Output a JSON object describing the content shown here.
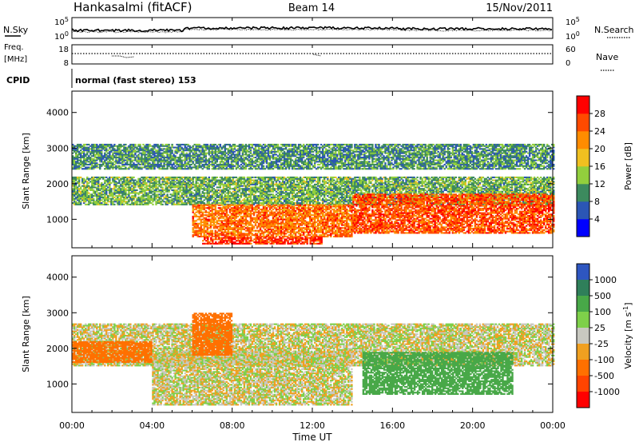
{
  "header": {
    "station": "Hankasalmi (fitACF)",
    "beam": "Beam 14",
    "date": "15/Nov/2011"
  },
  "top_panel": {
    "left_label": "N.Sky",
    "right_label": "N.Search",
    "y_ticks_left": [
      "10^5",
      "10^0"
    ],
    "y_ticks_right": [
      "10^5",
      "10^0"
    ]
  },
  "freq_panel": {
    "label_top": "Freq.",
    "label_unit": "[MHz]",
    "right_label": "Nave",
    "y_ticks_left": [
      "18",
      "8"
    ],
    "y_ticks_right": [
      "60",
      "0"
    ]
  },
  "cpid": {
    "label": "CPID",
    "text": "normal (fast stereo) 153"
  },
  "x_axis": {
    "label": "Time UT",
    "ticks": [
      "00:00",
      "04:00",
      "08:00",
      "12:00",
      "16:00",
      "20:00",
      "00:00"
    ]
  },
  "colors": {
    "power": [
      "#0000ff",
      "#2b56b5",
      "#3c8a5e",
      "#92cf3d",
      "#f0c020",
      "#ff8c00",
      "#ff4a00",
      "#ff0000"
    ],
    "velocity": [
      "#2e56c0",
      "#2f7f5a",
      "#48a848",
      "#7ed04a",
      "#c8c8c0",
      "#f0a020",
      "#ff7000",
      "#ff4400",
      "#ff0000"
    ]
  },
  "chart_data": [
    {
      "type": "heatmap",
      "title": "",
      "xlabel": "Time UT",
      "ylabel": "Slant Range [km]",
      "xlim": [
        0,
        24
      ],
      "ylim": [
        200,
        4600
      ],
      "y_ticks": [
        "1000",
        "2000",
        "3000",
        "4000"
      ],
      "colorbar": {
        "label": "Power [dB]",
        "range": [
          0,
          32
        ],
        "ticks": [
          "4",
          "8",
          "12",
          "16",
          "20",
          "24",
          "28"
        ]
      },
      "features": [
        {
          "t_start": 0,
          "t_end": 24,
          "range_start": 1400,
          "range_end": 2200,
          "value": 12
        },
        {
          "t_start": 6,
          "t_end": 14,
          "range_start": 500,
          "range_end": 1400,
          "value": 24
        },
        {
          "t_start": 6.5,
          "t_end": 12.5,
          "range_start": 300,
          "range_end": 500,
          "value": 28
        },
        {
          "t_start": 14,
          "t_end": 24,
          "range_start": 600,
          "range_end": 1700,
          "value": 26
        },
        {
          "t_start": 0,
          "t_end": 24,
          "range_start": 2400,
          "range_end": 3100,
          "value": 10
        }
      ]
    },
    {
      "type": "heatmap",
      "title": "",
      "xlabel": "Time UT",
      "ylabel": "Slant Range [km]",
      "xlim": [
        0,
        24
      ],
      "ylim": [
        200,
        4600
      ],
      "y_ticks": [
        "1000",
        "2000",
        "3000",
        "4000"
      ],
      "colorbar": {
        "label": "Velocity [m s^-1]",
        "ticks": [
          "1000",
          "500",
          "100",
          "25",
          "-25",
          "-100",
          "-500",
          "-1000"
        ]
      },
      "features": [
        {
          "t_start": 0,
          "t_end": 24,
          "range_start": 1500,
          "range_end": 2700,
          "value": 0
        },
        {
          "t_start": 4,
          "t_end": 14,
          "range_start": 400,
          "range_end": 1900,
          "value": 0
        },
        {
          "t_start": 0,
          "t_end": 4,
          "range_start": 1600,
          "range_end": 2200,
          "value": -200
        },
        {
          "t_start": 14.5,
          "t_end": 22,
          "range_start": 700,
          "range_end": 1900,
          "value": 300
        },
        {
          "t_start": 6,
          "t_end": 8,
          "range_start": 1800,
          "range_end": 3000,
          "value": -400
        }
      ]
    }
  ]
}
